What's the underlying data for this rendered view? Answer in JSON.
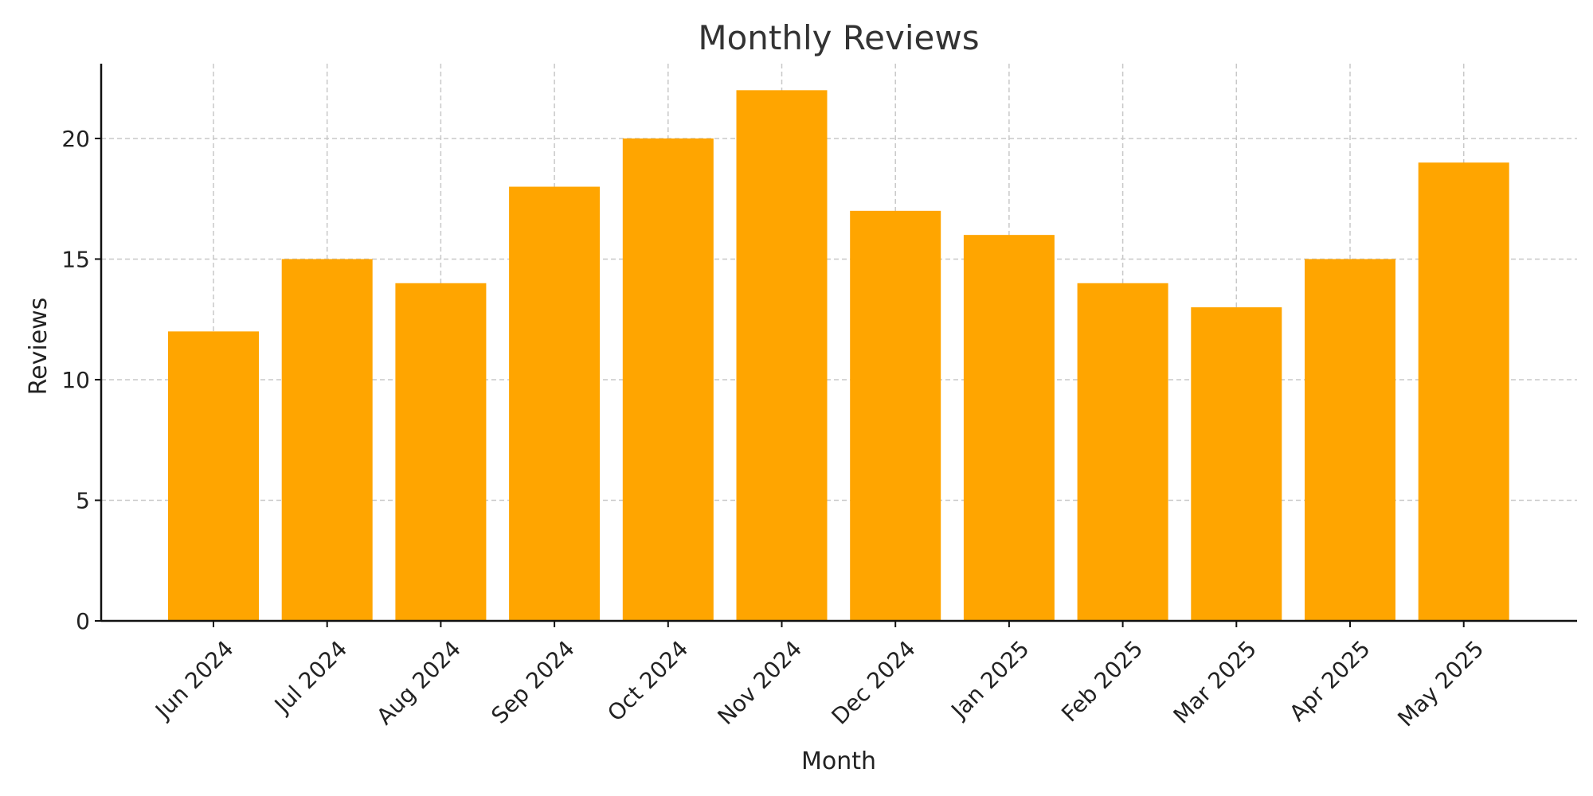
{
  "chart_data": {
    "type": "bar",
    "title": "Monthly Reviews",
    "xlabel": "Month",
    "ylabel": "Reviews",
    "categories": [
      "Jun 2024",
      "Jul 2024",
      "Aug 2024",
      "Sep 2024",
      "Oct 2024",
      "Nov 2024",
      "Dec 2024",
      "Jan 2025",
      "Feb 2025",
      "Mar 2025",
      "Apr 2025",
      "May 2025"
    ],
    "values": [
      12,
      15,
      14,
      18,
      20,
      22,
      17,
      16,
      14,
      13,
      15,
      19
    ],
    "ylim": [
      0,
      23.1
    ],
    "yticks": [
      0,
      5,
      10,
      15,
      20
    ],
    "bar_color": "#FFA500",
    "grid": true,
    "legend": "none"
  }
}
